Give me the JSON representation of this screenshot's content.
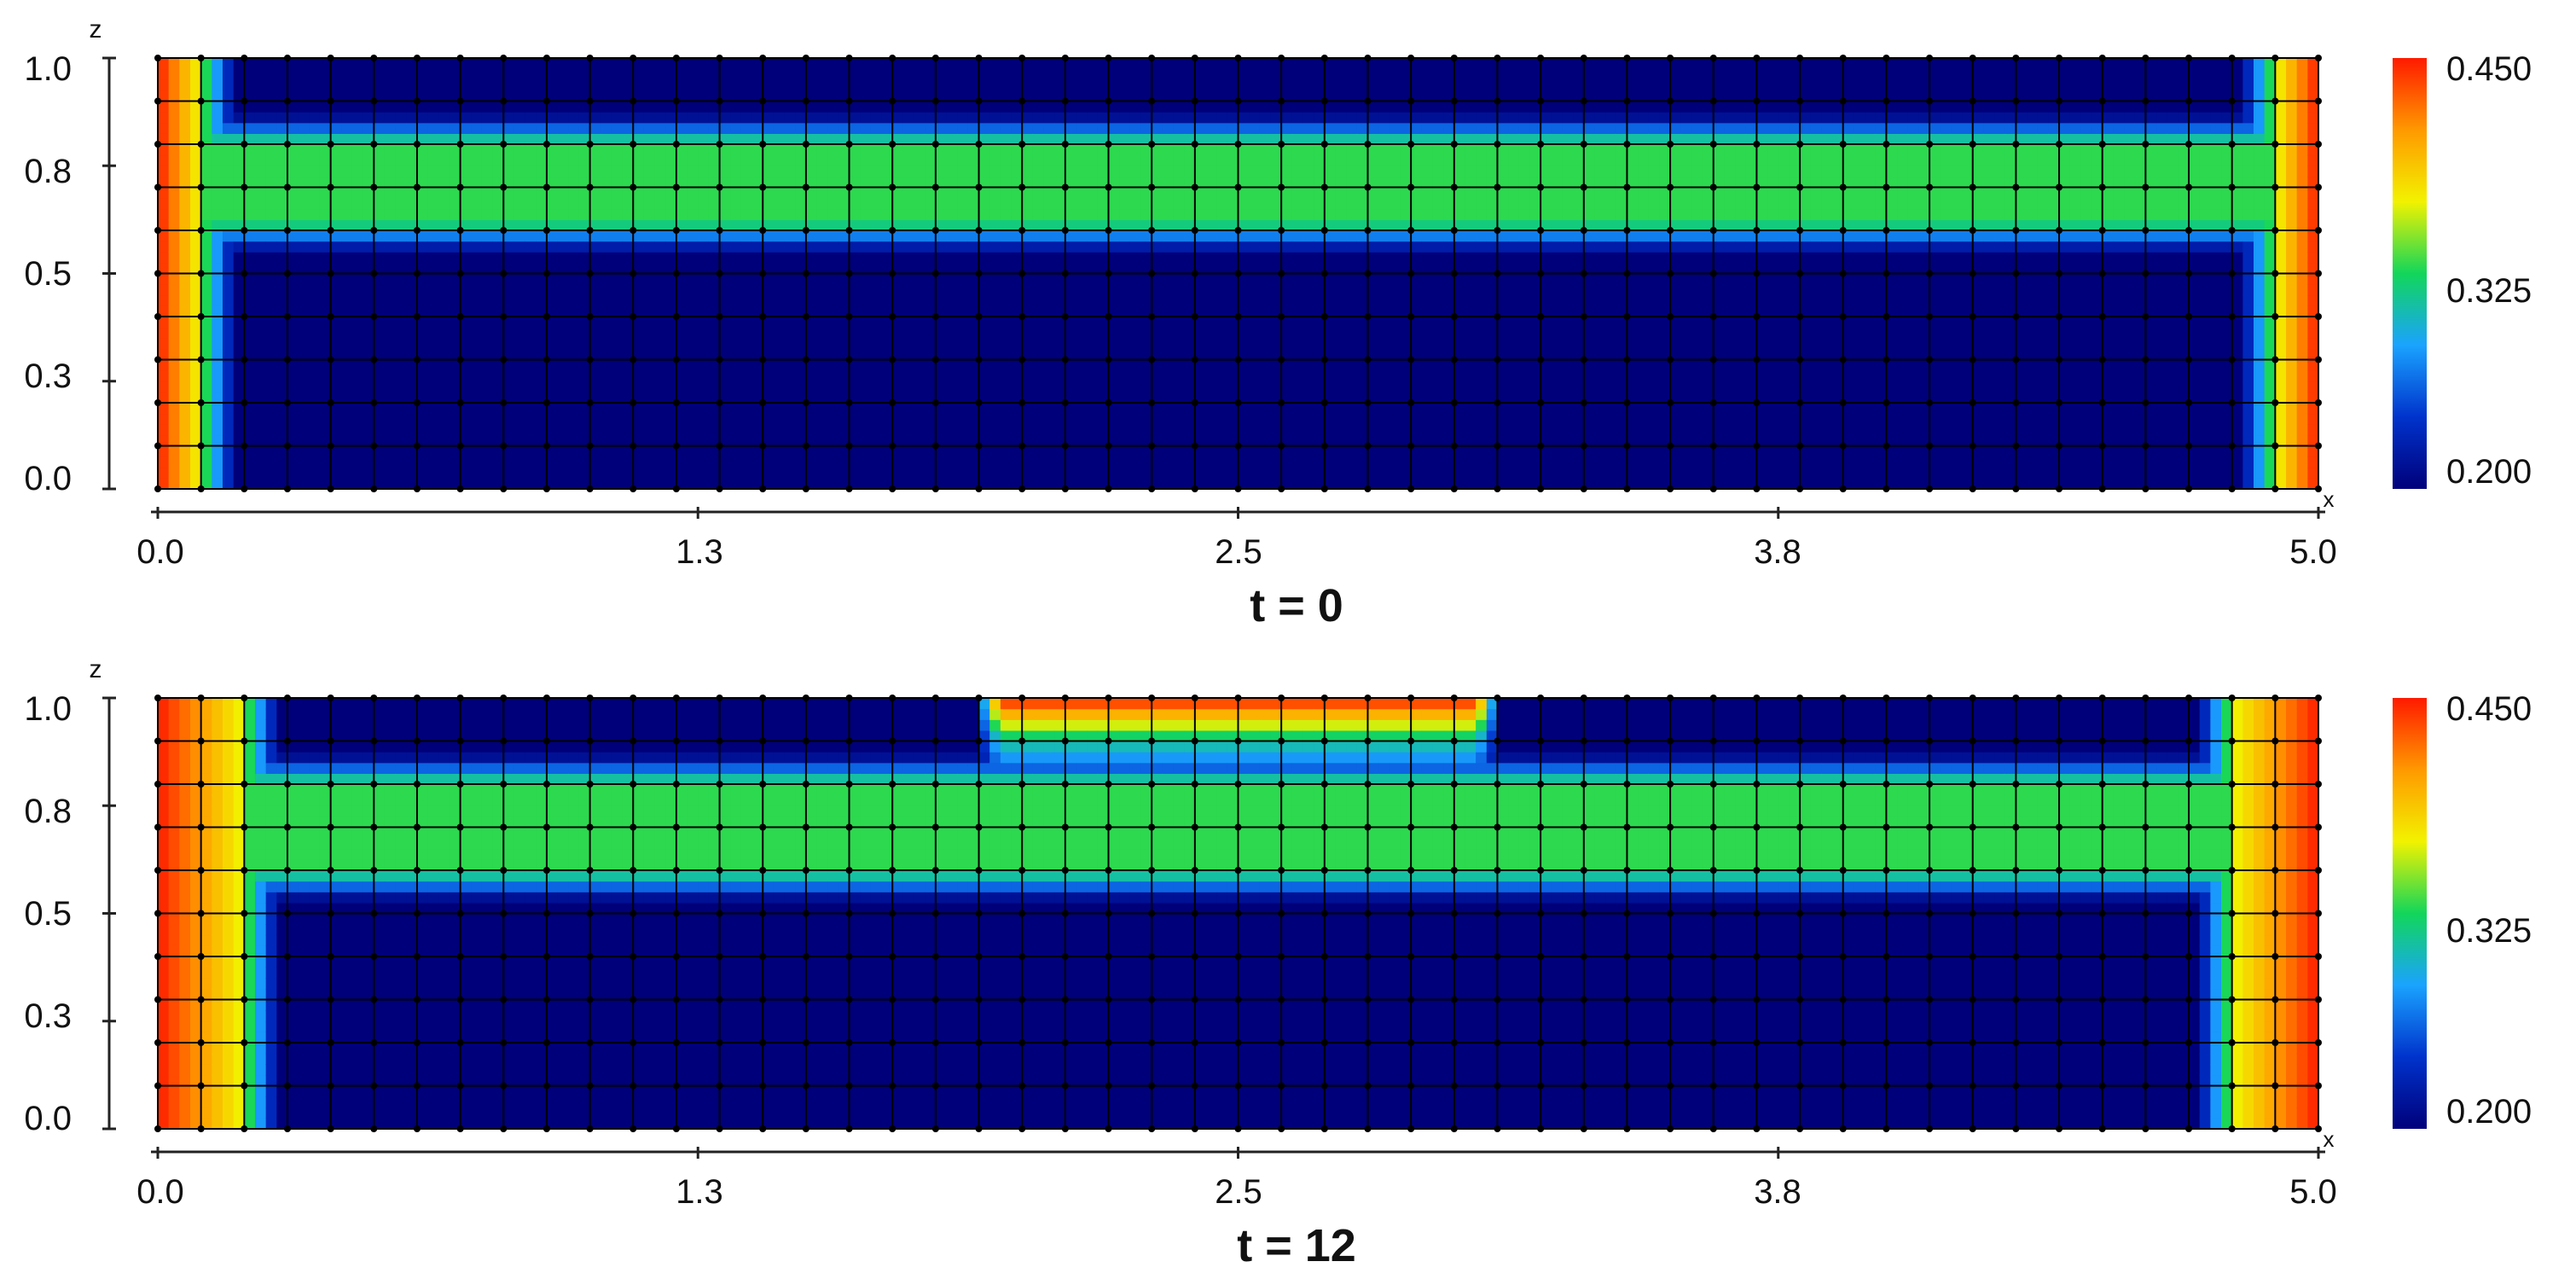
{
  "chart_data": [
    {
      "type": "heatmap",
      "panel_label": "t = 0",
      "xlabel": "x",
      "ylabel": "z",
      "xlim": [
        0.0,
        5.0
      ],
      "ylim": [
        0.0,
        1.0
      ],
      "x_ticks": [
        "0.0",
        "1.3",
        "2.5",
        "3.8",
        "5.0"
      ],
      "y_ticks": [
        "0.0",
        "0.3",
        "0.5",
        "0.8",
        "1.0"
      ],
      "colorbar": {
        "max": "0.450",
        "mid": "0.325",
        "min": "0.200",
        "colors": [
          "#00007a",
          "#0033cc",
          "#1aa3ff",
          "#12d65a",
          "#f2f200",
          "#ff9900",
          "#ff1a00"
        ]
      },
      "grid_columns": 50,
      "grid_rows": 10,
      "field": {
        "background": 0.2,
        "band": {
          "z_range": [
            0.62,
            0.8
          ],
          "value": 0.33
        },
        "left_wall": {
          "x_range": [
            0.0,
            0.1
          ],
          "value": 0.45
        },
        "right_wall": {
          "x_range": [
            4.9,
            5.0
          ],
          "value": 0.45
        },
        "top_patch": null
      }
    },
    {
      "type": "heatmap",
      "panel_label": "t = 12",
      "xlabel": "x",
      "ylabel": "z",
      "xlim": [
        0.0,
        5.0
      ],
      "ylim": [
        0.0,
        1.0
      ],
      "x_ticks": [
        "0.0",
        "1.3",
        "2.5",
        "3.8",
        "5.0"
      ],
      "y_ticks": [
        "0.0",
        "0.3",
        "0.5",
        "0.8",
        "1.0"
      ],
      "colorbar": {
        "max": "0.450",
        "mid": "0.325",
        "min": "0.200",
        "colors": [
          "#00007a",
          "#0033cc",
          "#1aa3ff",
          "#12d65a",
          "#f2f200",
          "#ff9900",
          "#ff1a00"
        ]
      },
      "grid_columns": 50,
      "grid_rows": 10,
      "field": {
        "background": 0.2,
        "band": {
          "z_range": [
            0.6,
            0.8
          ],
          "value": 0.33
        },
        "left_wall": {
          "x_range": [
            0.0,
            0.2
          ],
          "value": 0.45
        },
        "right_wall": {
          "x_range": [
            4.8,
            5.0
          ],
          "value": 0.45
        },
        "top_patch": {
          "x_range": [
            1.95,
            3.05
          ],
          "z_range": [
            0.93,
            1.0
          ],
          "value": 0.45
        }
      }
    }
  ]
}
